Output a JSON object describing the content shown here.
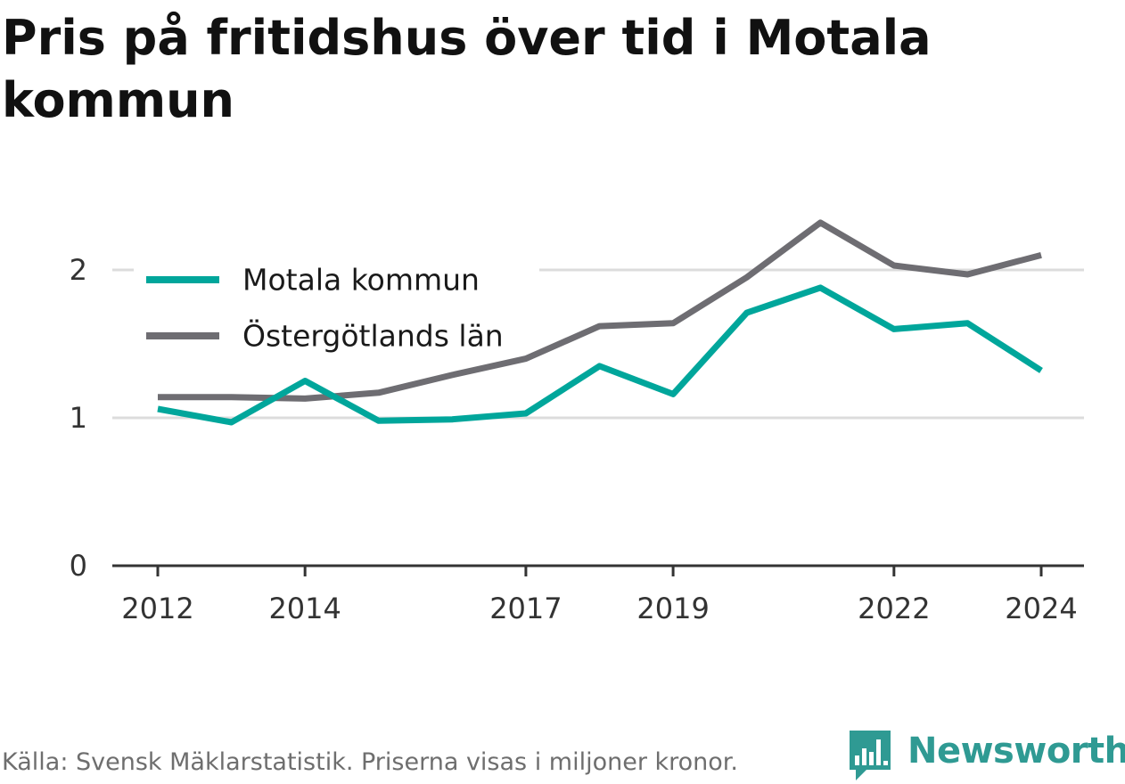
{
  "title": "Pris på fritidshus över tid i Motala kommun",
  "footer": {
    "source": "Källa: Svensk Mäklarstatistik. Priserna visas i miljoner kronor."
  },
  "brand": {
    "name": "Newsworthy",
    "icon": "bar-chart-speech-bubble-icon",
    "color": "#2f9a93"
  },
  "chart_data": {
    "type": "line",
    "title": "Pris på fritidshus över tid i Motala kommun",
    "xlabel": "",
    "ylabel": "",
    "x": [
      2012,
      2013,
      2014,
      2015,
      2016,
      2017,
      2018,
      2019,
      2020,
      2021,
      2022,
      2023,
      2024
    ],
    "xticks": [
      2012,
      2014,
      2017,
      2019,
      2022,
      2024
    ],
    "xlim": [
      2011.4,
      2024.6
    ],
    "yticks": [
      0,
      1,
      2
    ],
    "ylim": [
      0,
      2.5
    ],
    "grid": true,
    "legend_position": "top-left",
    "series": [
      {
        "name": "Motala kommun",
        "color": "#00a69b",
        "values": [
          1.06,
          0.97,
          1.25,
          0.98,
          0.99,
          1.03,
          1.35,
          1.16,
          1.71,
          1.88,
          1.6,
          1.64,
          1.32
        ]
      },
      {
        "name": "Östergötlands län",
        "color": "#6e6d72",
        "values": [
          1.14,
          1.14,
          1.13,
          1.17,
          1.29,
          1.4,
          1.62,
          1.64,
          1.95,
          2.32,
          2.03,
          1.97,
          2.1
        ]
      }
    ]
  }
}
